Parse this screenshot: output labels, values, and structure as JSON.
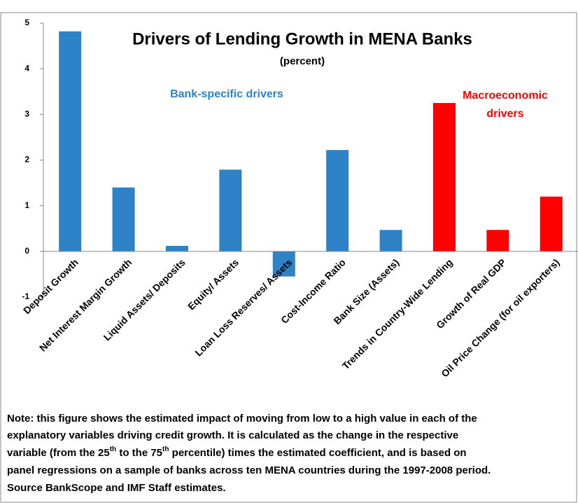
{
  "chart_data": {
    "type": "bar",
    "title": "Drivers of Lending Growth in MENA Banks",
    "subtitle": "(percent)",
    "annotations": [
      "Bank-specific drivers",
      "Macroeconomic",
      "drivers"
    ],
    "categories": [
      "Deposit Growth",
      "Net Interest Margin Growth",
      "Liquid Assets/ Deposits",
      "Equity/ Assets",
      "Loan Loss Reserves/ Assets",
      "Cost-Income Ratio",
      "Bank Size (Assets)",
      "Trends in Country-Wide Lending",
      "Growth of Real GDP",
      "Oil Price Change (for oil exporters)"
    ],
    "values": [
      4.82,
      1.4,
      0.12,
      1.79,
      -0.55,
      2.22,
      0.47,
      3.25,
      0.47,
      1.2
    ],
    "colors": [
      "#2e83c6",
      "#2e83c6",
      "#2e83c6",
      "#2e83c6",
      "#2e83c6",
      "#2e83c6",
      "#2e83c6",
      "#ff0000",
      "#ff0000",
      "#ff0000"
    ],
    "ylim": [
      -1,
      5
    ],
    "yticks": [
      -1,
      0,
      1,
      2,
      3,
      4,
      5
    ],
    "grid": false
  },
  "note": {
    "lines": [
      "Note:  this figure shows the estimated impact of moving from low to a high value in each of the",
      "explanatory variables driving credit growth. It is calculated as the change in the respective",
      [
        "variable (from the 25",
        "th",
        " to the 75",
        "th",
        " percentile) times the estimated coefficient, and is based  on"
      ],
      "panel regressions on a sample of banks across ten MENA countries during the 1997-2008 period.",
      "Source BankScope and IMF Staff estimates."
    ]
  }
}
